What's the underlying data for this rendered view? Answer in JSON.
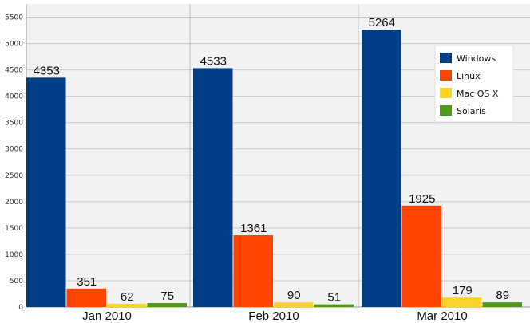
{
  "chart_data": {
    "type": "bar",
    "title": "",
    "xlabel": "",
    "ylabel": "",
    "ylim": [
      0,
      5750
    ],
    "yticks": [
      0,
      500,
      1000,
      1500,
      2000,
      2500,
      3000,
      3500,
      4000,
      4500,
      5000,
      5500
    ],
    "grid": true,
    "legend_position": "top-right",
    "categories": [
      "Jan 2010",
      "Feb 2010",
      "Mar 2010"
    ],
    "series": [
      {
        "name": "Windows",
        "color": "#003f87",
        "values": [
          4353,
          4533,
          5264
        ]
      },
      {
        "name": "Linux",
        "color": "#ff4500",
        "values": [
          351,
          1361,
          1925
        ]
      },
      {
        "name": "Mac OS X",
        "color": "#fdd32a",
        "values": [
          62,
          90,
          179
        ]
      },
      {
        "name": "Solaris",
        "color": "#4f9a1a",
        "values": [
          75,
          51,
          89
        ]
      }
    ]
  }
}
